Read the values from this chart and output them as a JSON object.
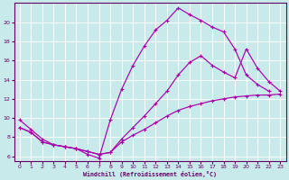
{
  "xlabel": "Windchill (Refroidissement éolien,°C)",
  "background_color": "#c8eaea",
  "grid_color": "#ffffff",
  "line_color": "#aa00aa",
  "xlim": [
    -0.5,
    23.5
  ],
  "ylim": [
    5.5,
    22.0
  ],
  "xticks": [
    0,
    1,
    2,
    3,
    4,
    5,
    6,
    7,
    8,
    9,
    10,
    11,
    12,
    13,
    14,
    15,
    16,
    17,
    18,
    19,
    20,
    21,
    22,
    23
  ],
  "yticks": [
    6,
    8,
    10,
    12,
    14,
    16,
    18,
    20
  ],
  "line1_x": [
    0,
    1,
    2,
    3,
    4,
    5,
    6,
    7,
    8,
    9,
    10,
    11,
    12,
    13,
    14,
    15,
    16,
    17,
    18,
    19,
    20,
    21,
    22
  ],
  "line1_y": [
    9.8,
    8.8,
    7.8,
    7.2,
    7.0,
    6.8,
    6.2,
    5.8,
    9.8,
    13.0,
    15.5,
    17.5,
    19.2,
    20.2,
    21.5,
    20.8,
    20.2,
    19.5,
    19.0,
    17.2,
    14.5,
    13.5,
    12.8
  ],
  "line2_x": [
    0,
    1,
    2,
    3,
    4,
    5,
    6,
    7,
    8,
    9,
    10,
    11,
    12,
    13,
    14,
    15,
    16,
    17,
    18,
    19,
    20,
    21,
    22,
    23
  ],
  "line2_y": [
    9.0,
    8.5,
    7.5,
    7.2,
    7.0,
    6.8,
    6.5,
    6.2,
    6.4,
    7.8,
    9.0,
    10.2,
    11.5,
    12.8,
    14.5,
    15.8,
    16.5,
    15.5,
    14.8,
    14.2,
    17.2,
    15.2,
    13.8,
    12.8
  ],
  "line3_x": [
    0,
    1,
    2,
    3,
    4,
    5,
    6,
    7,
    8,
    9,
    10,
    11,
    12,
    13,
    14,
    15,
    16,
    17,
    18,
    19,
    20,
    21,
    22,
    23
  ],
  "line3_y": [
    9.0,
    8.5,
    7.5,
    7.2,
    7.0,
    6.8,
    6.5,
    6.2,
    6.4,
    7.5,
    8.2,
    8.8,
    9.5,
    10.2,
    10.8,
    11.2,
    11.5,
    11.8,
    12.0,
    12.2,
    12.3,
    12.4,
    12.4,
    12.5
  ]
}
